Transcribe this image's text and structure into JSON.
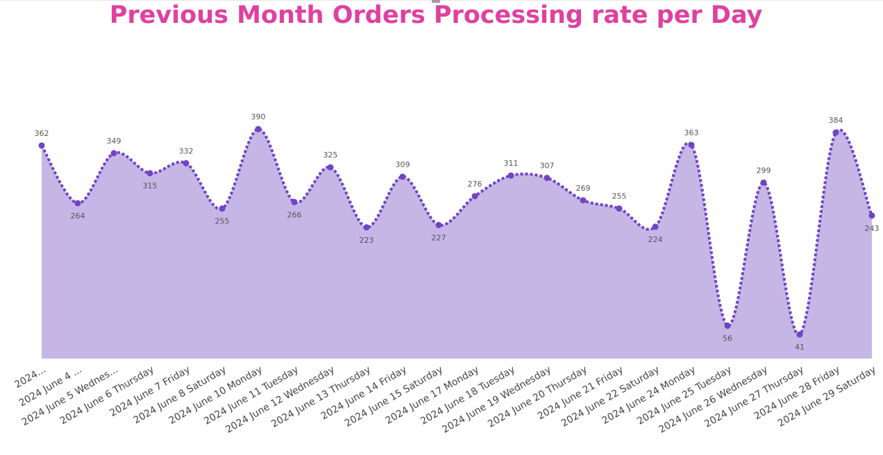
{
  "colors": {
    "title": "#e040a0",
    "area": "#c5b6e6",
    "line": "#7044c4",
    "marker": "#7044c4",
    "label": "#555555",
    "tick": "#444444"
  },
  "chart_data": {
    "type": "area",
    "title": "Previous Month Orders Processing rate per Day",
    "xlabel": "",
    "ylabel": "",
    "line_style": "dotted",
    "smooth": true,
    "markers": true,
    "grid": false,
    "legend": "none",
    "ylim": [
      0,
      430
    ],
    "categories": [
      "2024...",
      "2024 June 4 ...",
      "2024 June 5 Wednes...",
      "2024 June 6 Thursday",
      "2024 June 7 Friday",
      "2024 June 8 Saturday",
      "2024 June 10 Monday",
      "2024 June 11 Tuesday",
      "2024 June 12 Wednesday",
      "2024 June 13 Thursday",
      "2024 June 14 Friday",
      "2024 June 15 Saturday",
      "2024 June 17 Monday",
      "2024 June 18 Tuesday",
      "2024 June 19 Wednesday",
      "2024 June 20 Thursday",
      "2024 June 21 Friday",
      "2024 June 22 Saturday",
      "2024 June 24 Monday",
      "2024 June 25 Tuesday",
      "2024 June 26 Wednesday",
      "2024 June 27 Thursday",
      "2024 June 28 Friday",
      "2024 June 29 Saturday"
    ],
    "values": [
      362,
      264,
      349,
      315,
      332,
      255,
      390,
      266,
      325,
      223,
      309,
      227,
      276,
      311,
      307,
      269,
      255,
      224,
      363,
      56,
      299,
      41,
      384,
      243
    ],
    "label_position": [
      "above",
      "below",
      "above",
      "below",
      "above",
      "below",
      "above",
      "below",
      "above",
      "below",
      "above",
      "below",
      "above",
      "above",
      "above",
      "above",
      "above",
      "below",
      "above",
      "below",
      "above",
      "below",
      "above",
      "below"
    ]
  }
}
